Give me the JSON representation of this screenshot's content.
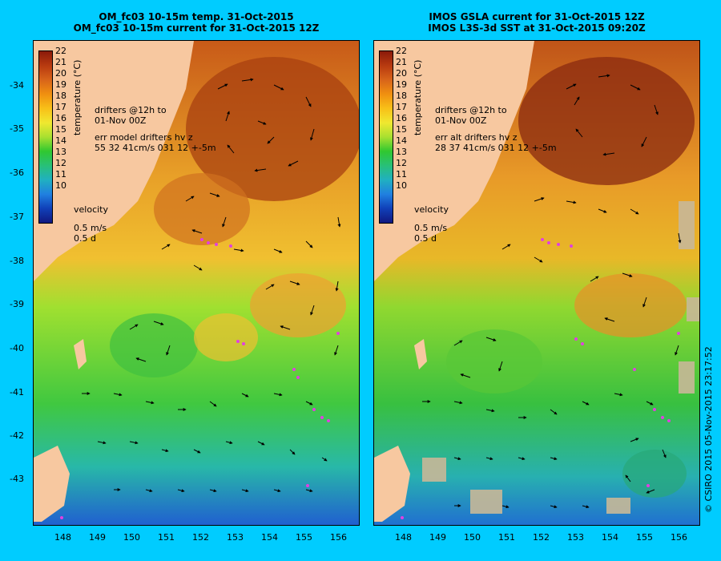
{
  "left_panel": {
    "title_line1": "OM_fc03 10-15m temp. 31-Oct-2015",
    "title_line2": "OM_fc03 10-15m current for 31-Oct-2015 12Z",
    "legend_drifters_line1": "drifters @12h to",
    "legend_drifters_line2": "01-Nov 00Z",
    "legend_err_line1": "err model drifters hv z",
    "legend_err_line2": "55 32 41cm/s 031 12 +-5m",
    "velocity_label": "velocity",
    "velocity_scale1": "0.5 m/s",
    "velocity_scale2": "0.5 d"
  },
  "right_panel": {
    "title_line1": "IMOS GSLA current for 31-Oct-2015 12Z",
    "title_line2": "IMOS L3S-3d SST at 31-Oct-2015 09:20Z",
    "legend_drifters_line1": "drifters @12h to",
    "legend_drifters_line2": "01-Nov 00Z",
    "legend_err_line1": "err alt drifters hv z",
    "legend_err_line2": "28 37 41cm/s 031 12 +-5m",
    "velocity_label": "velocity",
    "velocity_scale1": "0.5 m/s",
    "velocity_scale2": "0.5 d"
  },
  "colorbar": {
    "title": "temperature (°C)",
    "ticks": [
      "22",
      "21",
      "20",
      "19",
      "18",
      "17",
      "16",
      "15",
      "14",
      "13",
      "12",
      "11",
      "10"
    ],
    "colors": [
      "#8b1a0a",
      "#b83a10",
      "#d8641a",
      "#f09010",
      "#f8c018",
      "#f0e830",
      "#a8e030",
      "#30c830",
      "#28c078",
      "#20b0c0",
      "#2080e0",
      "#1040b8",
      "#101880"
    ]
  },
  "axes": {
    "lat_labels": [
      "-34",
      "-35",
      "-36",
      "-37",
      "-38",
      "-39",
      "-40",
      "-41",
      "-42",
      "-43"
    ],
    "lon_labels": [
      "148",
      "149",
      "150",
      "151",
      "152",
      "153",
      "154",
      "155",
      "156"
    ]
  },
  "credit": "© CSIRO 2015  05-Nov-2015 23:17:52",
  "colors": {
    "background": "#00ccff",
    "land": "#f7c8a0",
    "drifter": "#e040e0"
  }
}
